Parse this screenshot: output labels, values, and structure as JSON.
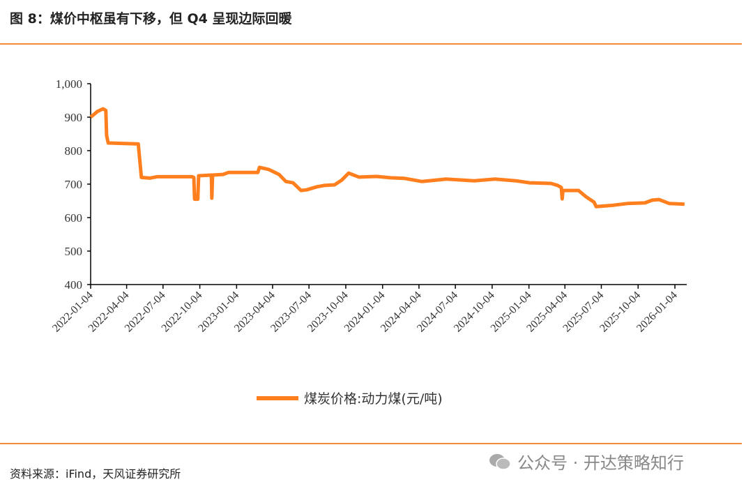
{
  "title": "图 8：煤价中枢虽有下移，但 Q4 呈现边际回暖",
  "source": "资料来源：iFind，天风证券研究所",
  "watermark": "公众号 · 开达策略知行",
  "chart_data": {
    "type": "line",
    "title": "",
    "xlabel": "",
    "ylabel": "",
    "ylim": [
      400,
      1000
    ],
    "yticks": [
      "400",
      "500",
      "600",
      "700",
      "800",
      "900",
      "1,000"
    ],
    "xticks": [
      "2022-01-04",
      "2022-04-04",
      "2022-07-04",
      "2022-10-04",
      "2023-01-04",
      "2023-04-04",
      "2023-07-04",
      "2023-10-04",
      "2024-01-04",
      "2024-04-04",
      "2024-07-04",
      "2024-10-04",
      "2025-01-04",
      "2025-04-04",
      "2025-07-04",
      "2025-10-04",
      "2026-01-04"
    ],
    "xlim": [
      "2022-01-04",
      "2026-01-30"
    ],
    "grid": false,
    "legend_position": "bottom",
    "color": "#ff7f1e",
    "series": [
      {
        "name": "煤炭价格:动力煤(元/吨)",
        "points": [
          [
            "2022-01-04",
            900
          ],
          [
            "2022-01-21",
            917
          ],
          [
            "2022-02-04",
            925
          ],
          [
            "2022-02-11",
            920
          ],
          [
            "2022-02-13",
            845
          ],
          [
            "2022-02-17",
            823
          ],
          [
            "2022-05-03",
            820
          ],
          [
            "2022-05-11",
            720
          ],
          [
            "2022-06-01",
            718
          ],
          [
            "2022-06-19",
            722
          ],
          [
            "2022-09-15",
            722
          ],
          [
            "2022-09-19",
            720
          ],
          [
            "2022-09-21",
            655
          ],
          [
            "2022-09-29",
            655
          ],
          [
            "2022-10-01",
            725
          ],
          [
            "2022-11-02",
            727
          ],
          [
            "2022-11-03",
            658
          ],
          [
            "2022-11-05",
            727
          ],
          [
            "2022-12-01",
            729
          ],
          [
            "2022-12-15",
            735
          ],
          [
            "2023-02-26",
            735
          ],
          [
            "2023-03-02",
            750
          ],
          [
            "2023-03-25",
            744
          ],
          [
            "2023-04-20",
            729
          ],
          [
            "2023-05-07",
            708
          ],
          [
            "2023-05-25",
            704
          ],
          [
            "2023-06-14",
            681
          ],
          [
            "2023-06-28",
            683
          ],
          [
            "2023-07-24",
            692
          ],
          [
            "2023-08-11",
            696
          ],
          [
            "2023-09-06",
            698
          ],
          [
            "2023-09-24",
            712
          ],
          [
            "2023-10-11",
            733
          ],
          [
            "2023-11-06",
            721
          ],
          [
            "2023-12-20",
            723
          ],
          [
            "2024-01-24",
            719
          ],
          [
            "2024-02-28",
            717
          ],
          [
            "2024-04-11",
            708
          ],
          [
            "2024-06-11",
            715
          ],
          [
            "2024-08-20",
            710
          ],
          [
            "2024-10-11",
            715
          ],
          [
            "2024-12-02",
            710
          ],
          [
            "2025-01-06",
            704
          ],
          [
            "2025-02-28",
            702
          ],
          [
            "2025-03-17",
            696
          ],
          [
            "2025-03-26",
            690
          ],
          [
            "2025-03-28",
            656
          ],
          [
            "2025-03-30",
            681
          ],
          [
            "2025-05-08",
            681
          ],
          [
            "2025-05-26",
            663
          ],
          [
            "2025-06-16",
            646
          ],
          [
            "2025-06-21",
            633
          ],
          [
            "2025-08-04",
            637
          ],
          [
            "2025-09-07",
            642
          ],
          [
            "2025-10-21",
            644
          ],
          [
            "2025-11-08",
            652
          ],
          [
            "2025-11-25",
            654
          ],
          [
            "2025-12-21",
            642
          ],
          [
            "2026-01-28",
            640
          ]
        ]
      }
    ]
  }
}
